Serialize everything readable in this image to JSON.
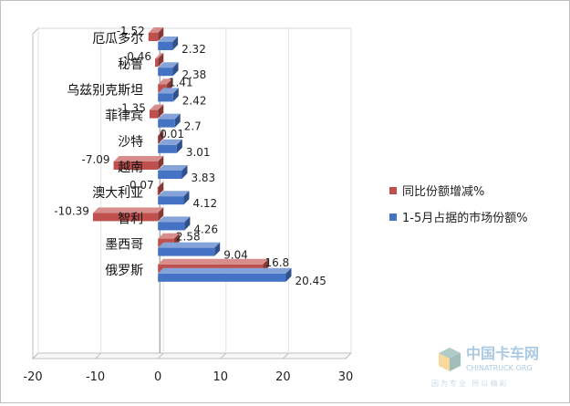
{
  "chart_data": {
    "type": "bar",
    "orientation": "horizontal",
    "title": "",
    "xlabel": "",
    "ylabel": "",
    "xlim": [
      -20,
      30
    ],
    "x_ticks": [
      -20,
      -10,
      0,
      10,
      20,
      30
    ],
    "categories": [
      "俄罗斯",
      "墨西哥",
      "智利",
      "澳大利亚",
      "越南",
      "沙特",
      "菲律宾",
      "乌兹别克斯坦",
      "秘鲁",
      "厄瓜多尔"
    ],
    "series": [
      {
        "name": "1-5月占据的市场份额%",
        "color": "#4472c4",
        "values": [
          20.45,
          9.04,
          4.26,
          4.12,
          3.83,
          3.01,
          2.7,
          2.42,
          2.38,
          2.32
        ]
      },
      {
        "name": "同比份额增减%",
        "color": "#c0504d",
        "values": [
          16.8,
          2.58,
          -10.39,
          -0.07,
          -7.09,
          0.01,
          -1.35,
          1.41,
          -0.46,
          -1.52
        ]
      }
    ],
    "legend_position": "right",
    "grid": false,
    "style": "3d"
  },
  "watermark": {
    "brand_cn": "中国卡车网",
    "brand_en": "CHINATRUCK.ORG",
    "slogan": "因为专业 所以精彩"
  }
}
